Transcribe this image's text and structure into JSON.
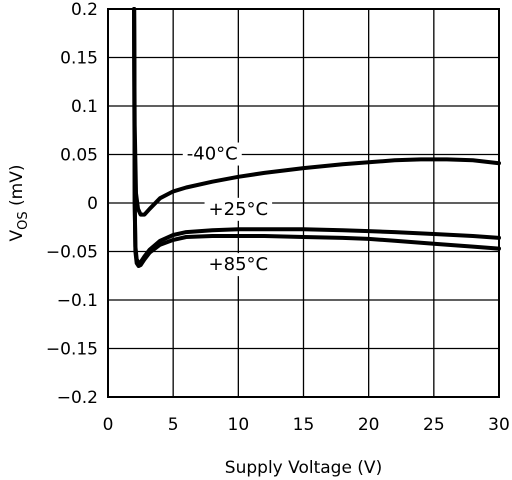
{
  "chart_data": {
    "type": "line",
    "xlabel": "Supply Voltage (V)",
    "ylabel_main": "V",
    "ylabel_sub": "OS",
    "ylabel_unit": " (mV)",
    "xlim": [
      0,
      30
    ],
    "ylim": [
      -0.2,
      0.2
    ],
    "x_ticks": [
      "0",
      "5",
      "10",
      "15",
      "20",
      "25",
      "30"
    ],
    "y_ticks": [
      "0.2",
      "0.15",
      "0.1",
      "0.05",
      "0",
      "-0.05",
      "-0.1",
      "-0.15",
      "-0.2"
    ],
    "grid": true,
    "series": [
      {
        "name": "-40°C",
        "x": [
          2.0,
          2.05,
          2.15,
          2.3,
          2.5,
          2.8,
          3.2,
          4,
          5,
          6,
          8,
          10,
          12,
          15,
          18,
          20,
          22,
          24,
          26,
          28,
          30
        ],
        "y": [
          0.2,
          0.08,
          0.01,
          -0.006,
          -0.012,
          -0.012,
          -0.006,
          0.005,
          0.012,
          0.016,
          0.022,
          0.027,
          0.031,
          0.036,
          0.04,
          0.042,
          0.044,
          0.045,
          0.045,
          0.044,
          0.041
        ]
      },
      {
        "name": "+25°C",
        "x": [
          2.0,
          2.05,
          2.1,
          2.2,
          2.35,
          2.5,
          2.8,
          3.2,
          4,
          5,
          6,
          8,
          10,
          12,
          15,
          18,
          20,
          22,
          25,
          28,
          30
        ],
        "y": [
          0.2,
          0.0,
          -0.045,
          -0.058,
          -0.062,
          -0.061,
          -0.055,
          -0.048,
          -0.039,
          -0.033,
          -0.03,
          -0.028,
          -0.027,
          -0.027,
          -0.027,
          -0.028,
          -0.029,
          -0.03,
          -0.032,
          -0.034,
          -0.036
        ]
      },
      {
        "name": "+85°C",
        "x": [
          2.0,
          2.05,
          2.1,
          2.2,
          2.35,
          2.5,
          2.8,
          3.2,
          4,
          5,
          6,
          8,
          10,
          12,
          15,
          18,
          20,
          22,
          25,
          28,
          30
        ],
        "y": [
          0.2,
          0.0,
          -0.05,
          -0.062,
          -0.065,
          -0.064,
          -0.058,
          -0.051,
          -0.043,
          -0.038,
          -0.035,
          -0.034,
          -0.034,
          -0.034,
          -0.035,
          -0.036,
          -0.037,
          -0.039,
          -0.042,
          -0.045,
          -0.047
        ]
      }
    ],
    "annotations": [
      {
        "text": "-40°C",
        "series": "-40°C",
        "x": 8.0,
        "y": 0.051
      },
      {
        "text": "+25°C",
        "series": "+25°C",
        "x": 10.0,
        "y": -0.006
      },
      {
        "text": "+85°C",
        "series": "+85°C",
        "x": 10.0,
        "y": -0.063
      }
    ]
  }
}
